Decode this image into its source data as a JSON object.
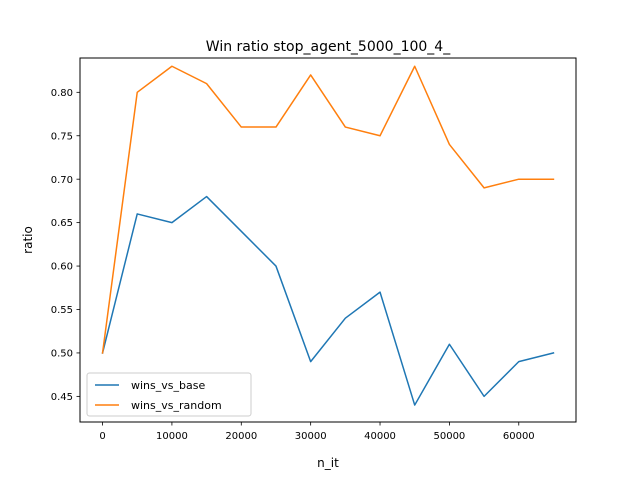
{
  "chart_data": {
    "type": "line",
    "title": "Win ratio stop_agent_5000_100_4_",
    "xlabel": "n_it",
    "ylabel": "ratio",
    "x": [
      0,
      5000,
      10000,
      15000,
      20000,
      25000,
      30000,
      35000,
      40000,
      45000,
      50000,
      55000,
      60000,
      65000
    ],
    "series": [
      {
        "name": "wins_vs_base",
        "color": "#1f77b4",
        "values": [
          0.5,
          0.66,
          0.65,
          0.68,
          0.64,
          0.6,
          0.49,
          0.54,
          0.57,
          0.44,
          0.51,
          0.45,
          0.49,
          0.5
        ]
      },
      {
        "name": "wins_vs_random",
        "color": "#ff7f0e",
        "values": [
          0.5,
          0.8,
          0.83,
          0.81,
          0.76,
          0.76,
          0.82,
          0.76,
          0.75,
          0.83,
          0.74,
          0.69,
          0.7,
          0.7
        ]
      }
    ],
    "xlim": [
      -3250,
      68250
    ],
    "ylim": [
      0.4205,
      0.8395
    ],
    "xticks": [
      0,
      10000,
      20000,
      30000,
      40000,
      50000,
      60000
    ],
    "xtick_labels": [
      "0",
      "10000",
      "20000",
      "30000",
      "40000",
      "50000",
      "60000"
    ],
    "yticks": [
      0.45,
      0.5,
      0.55,
      0.6,
      0.65,
      0.7,
      0.75,
      0.8
    ],
    "ytick_labels": [
      "0.45",
      "0.50",
      "0.55",
      "0.60",
      "0.65",
      "0.70",
      "0.75",
      "0.80"
    ],
    "grid": false,
    "legend_position": "lower-left"
  }
}
